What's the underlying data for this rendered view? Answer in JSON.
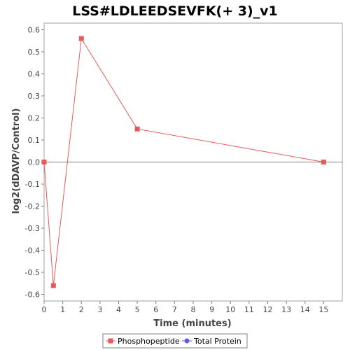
{
  "chart_data": {
    "type": "line",
    "title": "LSS#LDLEEDSEVFK(+ 3)_v1",
    "xlabel": "Time (minutes)",
    "ylabel": "log2(dDAVP/Control)",
    "xlim": [
      0,
      16
    ],
    "ylim": [
      -0.63,
      0.63
    ],
    "xticks": [
      0,
      1,
      2,
      3,
      4,
      5,
      6,
      7,
      8,
      9,
      10,
      11,
      12,
      13,
      14,
      15
    ],
    "yticks": [
      -0.6,
      -0.5,
      -0.4,
      -0.3,
      -0.2,
      -0.1,
      0.0,
      0.1,
      0.2,
      0.3,
      0.4,
      0.5,
      0.6
    ],
    "ytick_labels": [
      "-0.6",
      "-0.5",
      "-0.4",
      "-0.3",
      "-0.2",
      "-0.1",
      "0.0",
      "0.1",
      "0.2",
      "0.3",
      "0.4",
      "0.5",
      "0.6"
    ],
    "grid": false,
    "zero_line": true,
    "legend_placement": "bottom-center",
    "series": [
      {
        "name": "Phosphopeptide",
        "color": "#e8595a",
        "marker": "square",
        "x": [
          0,
          0.5,
          2,
          5,
          15
        ],
        "y": [
          0.0,
          -0.56,
          0.56,
          0.15,
          0.0
        ]
      },
      {
        "name": "Total Protein",
        "color": "#5b5bea",
        "marker": "circle",
        "x": [],
        "y": []
      }
    ]
  }
}
